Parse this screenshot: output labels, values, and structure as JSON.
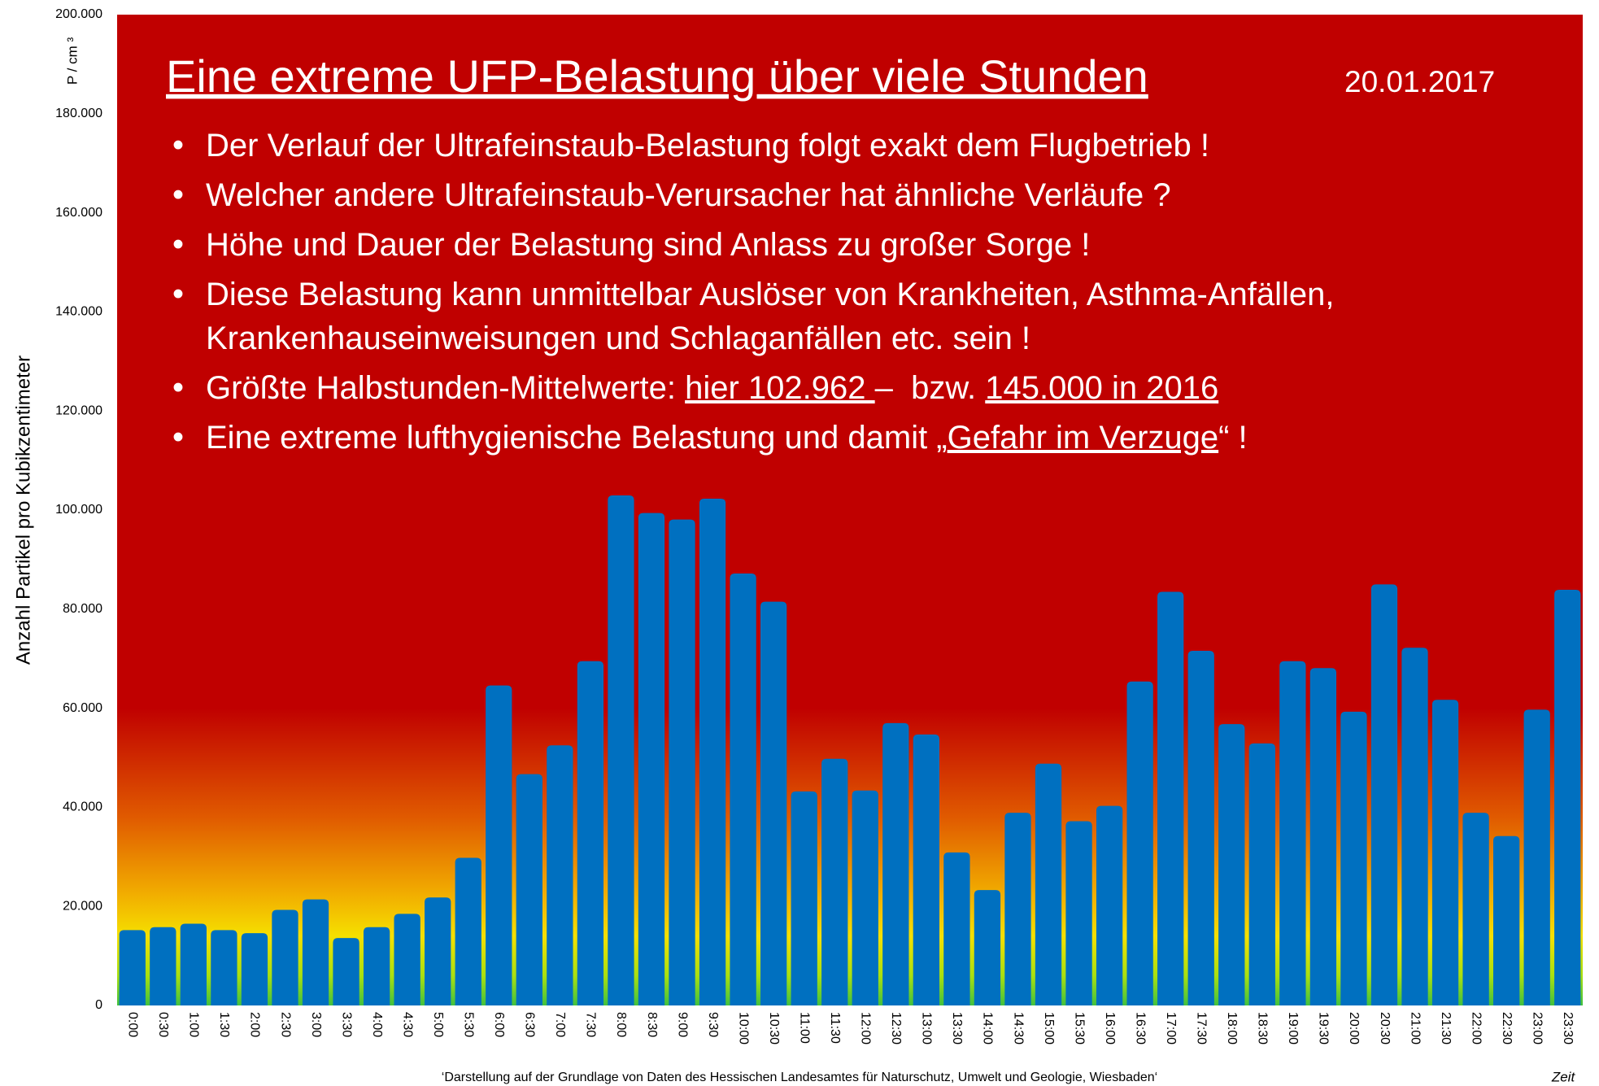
{
  "chart_data": {
    "type": "bar",
    "title": "Eine extreme UFP-Belastung über viele Stunden",
    "date": "20.01.2017",
    "bullets": [
      [
        [
          {
            "text": "Der Verlauf der Ultrafeinstaub-Belastung folgt exakt dem Flugbetrieb !"
          }
        ]
      ],
      [
        [
          {
            "text": "Welcher andere Ultrafeinstaub-Verursacher hat ähnliche Verläufe ?"
          }
        ]
      ],
      [
        [
          {
            "text": "Höhe und Dauer der Belastung sind Anlass zu großer Sorge !"
          }
        ]
      ],
      [
        [
          {
            "text": "Diese Belastung kann unmittelbar Auslöser von Krankheiten, Asthma-Anfällen,"
          }
        ],
        [
          {
            "text": "Krankenhauseinweisungen und Schlaganfällen etc. sein !"
          }
        ]
      ],
      [
        [
          {
            "text": "Größte Halbstunden-Mittelwerte: "
          },
          {
            "text": "hier 102.962 ",
            "underline": true
          },
          {
            "text": "–  bzw. "
          },
          {
            "text": "145.000 in 2016",
            "underline": true
          }
        ]
      ],
      [
        [
          {
            "text": "Eine extreme lufthygienische Belastung und damit „"
          },
          {
            "text": "Gefahr im Verzuge",
            "underline": true
          },
          {
            "text": "“ !"
          }
        ]
      ]
    ],
    "y_label": "Anzahl Partikel pro Kubikzentimeter",
    "y_unit": "P / cm ³",
    "x_label": "Zeit",
    "footnote": "‘Darstellung auf der Grundlage von Daten des Hessischen Landesamtes  für Naturschutz, Umwelt und Geologie, Wiesbaden‘",
    "categories": [
      "0:00",
      "0:30",
      "1:00",
      "1:30",
      "2:00",
      "2:30",
      "3:00",
      "3:30",
      "4:00",
      "4:30",
      "5:00",
      "5:30",
      "6:00",
      "6:30",
      "7:00",
      "7:30",
      "8:00",
      "8:30",
      "9:00",
      "9:30",
      "10:00",
      "10:30",
      "11:00",
      "11:30",
      "12:00",
      "12:30",
      "13:00",
      "13:30",
      "14:00",
      "14:30",
      "15:00",
      "15:30",
      "16:00",
      "16:30",
      "17:00",
      "17:30",
      "18:00",
      "18:30",
      "19:00",
      "19:30",
      "20:00",
      "20:30",
      "21:00",
      "21:30",
      "22:00",
      "22:30",
      "23:00",
      "23:30"
    ],
    "values": [
      15200,
      15800,
      16500,
      15200,
      14600,
      19300,
      21400,
      13600,
      15800,
      18500,
      21800,
      29800,
      64600,
      46700,
      52500,
      69500,
      102962,
      99400,
      98100,
      102300,
      87200,
      81500,
      43200,
      49800,
      43400,
      57000,
      54700,
      30900,
      23300,
      38900,
      48800,
      37200,
      40300,
      65400,
      83500,
      71600,
      56800,
      52900,
      69500,
      68100,
      59300,
      85000,
      72200,
      61700,
      38900,
      34200,
      59700,
      83900
    ],
    "color": "#0070c0",
    "ylim": [
      0,
      200000
    ],
    "yticks": [
      0,
      {
        "value": 20000,
        "label": "20.000"
      },
      {
        "value": 40000,
        "label": "40.000"
      },
      {
        "value": 60000,
        "label": "60.000"
      },
      {
        "value": 80000,
        "label": "80.000"
      },
      {
        "value": 100000,
        "label": "100.000"
      },
      {
        "value": 120000,
        "label": "120.000"
      },
      {
        "value": 140000,
        "label": "140.000"
      },
      {
        "value": 160000,
        "label": "160.000"
      },
      {
        "value": 180000,
        "label": "180.000"
      },
      {
        "value": 200000,
        "label": "200.000"
      }
    ]
  }
}
